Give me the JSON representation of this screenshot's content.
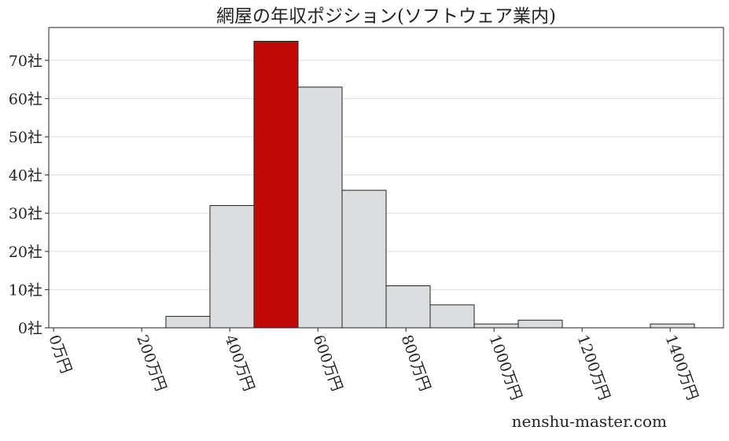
{
  "chart_data": {
    "type": "bar",
    "title": "網屋の年収ポジション(ソフトウェア業内)",
    "xlabel": "",
    "ylabel": "",
    "bin_width": 100,
    "bins": [
      {
        "start": 255,
        "value": 3
      },
      {
        "start": 355,
        "value": 32
      },
      {
        "start": 455,
        "value": 75,
        "highlight": true
      },
      {
        "start": 555,
        "value": 63
      },
      {
        "start": 655,
        "value": 36
      },
      {
        "start": 755,
        "value": 11
      },
      {
        "start": 855,
        "value": 6
      },
      {
        "start": 955,
        "value": 1
      },
      {
        "start": 1055,
        "value": 2
      },
      {
        "start": 1155,
        "value": 0
      },
      {
        "start": 1255,
        "value": 0
      },
      {
        "start": 1355,
        "value": 1
      }
    ],
    "xlim": [
      -11,
      1521
    ],
    "ylim": [
      0,
      78.6
    ],
    "xticks": [
      0,
      200,
      400,
      600,
      800,
      1000,
      1200,
      1400
    ],
    "xtick_labels": [
      "0万円",
      "200万円",
      "400万円",
      "600万円",
      "800万円",
      "1000万円",
      "1200万円",
      "1400万円"
    ],
    "yticks": [
      0,
      10,
      20,
      30,
      40,
      50,
      60,
      70
    ],
    "ytick_labels": [
      "0社",
      "10社",
      "20社",
      "30社",
      "40社",
      "50社",
      "60社",
      "70社"
    ],
    "grid": "horizontal",
    "colors": {
      "bar": "#dcdddf",
      "highlight": "#c00a0a",
      "edge": "#222222",
      "grid": "#dddddd"
    }
  },
  "watermark": "nenshu-master.com"
}
